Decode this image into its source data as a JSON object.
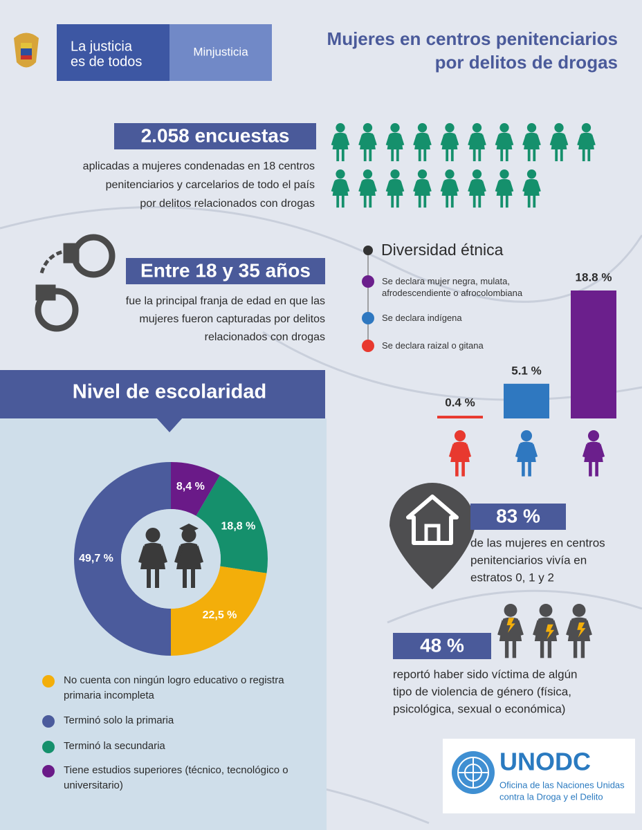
{
  "header": {
    "brand": [
      "La justicia",
      "es de todos"
    ],
    "ministry": "Minjusticia",
    "title": [
      "Mujeres en centros penitenciarios",
      "por delitos de drogas"
    ]
  },
  "surveys": {
    "headline": "2.058 encuestas",
    "text": [
      "aplicadas a mujeres condenadas en 18 centros",
      "penitenciarios y carcelarios de todo el país",
      "por delitos relacionados con drogas"
    ]
  },
  "age": {
    "headline": "Entre 18 y 35 años",
    "text": [
      "fue la principal franja de edad en que las",
      "mujeres fueron capturadas por delitos",
      "relacionados con drogas"
    ]
  },
  "chart_data": [
    {
      "type": "bar",
      "title": "Diversidad étnica",
      "categories": [
        "Se declara raizal o gitana",
        "Se declara indígena",
        "Se declara mujer negra, mulata, afrodescendiente o afrocolombiana"
      ],
      "values": [
        0.4,
        5.1,
        18.8
      ],
      "value_labels": [
        "0.4 %",
        "5.1 %",
        "18.8 %"
      ],
      "colors": [
        "#e8392f",
        "#2f78c0",
        "#6b1f8c"
      ]
    },
    {
      "type": "pie",
      "title": "Nivel de escolaridad",
      "categories": [
        "No cuenta con ningún logro educativo o registra primaria incompleta",
        "Terminó solo la primaria",
        "Terminó la secundaria",
        "Tiene estudios superiores (técnico, tecnológico o universitario)"
      ],
      "values": [
        22.5,
        49.7,
        18.8,
        8.4
      ],
      "value_labels": [
        "22,5 %",
        "49,7 %",
        "18,8 %",
        "8,4 %"
      ],
      "colors": [
        "#f3ae0a",
        "#4b5b9c",
        "#15906c",
        "#6a1a88"
      ]
    }
  ],
  "housing": {
    "headline": "83 %",
    "text": [
      "de las mujeres en centros",
      "penitenciarios vivía en",
      "estratos 0, 1 y 2"
    ]
  },
  "violence": {
    "headline": "48 %",
    "text": [
      "reportó haber sido víctima de algún",
      "tipo de violencia de género (física,",
      "psicológica, sexual o económica)"
    ]
  },
  "footer": {
    "org": "UNODC",
    "name": [
      "Oficina de las Naciones Unidas",
      "contra la Droga y el Delito"
    ]
  }
}
